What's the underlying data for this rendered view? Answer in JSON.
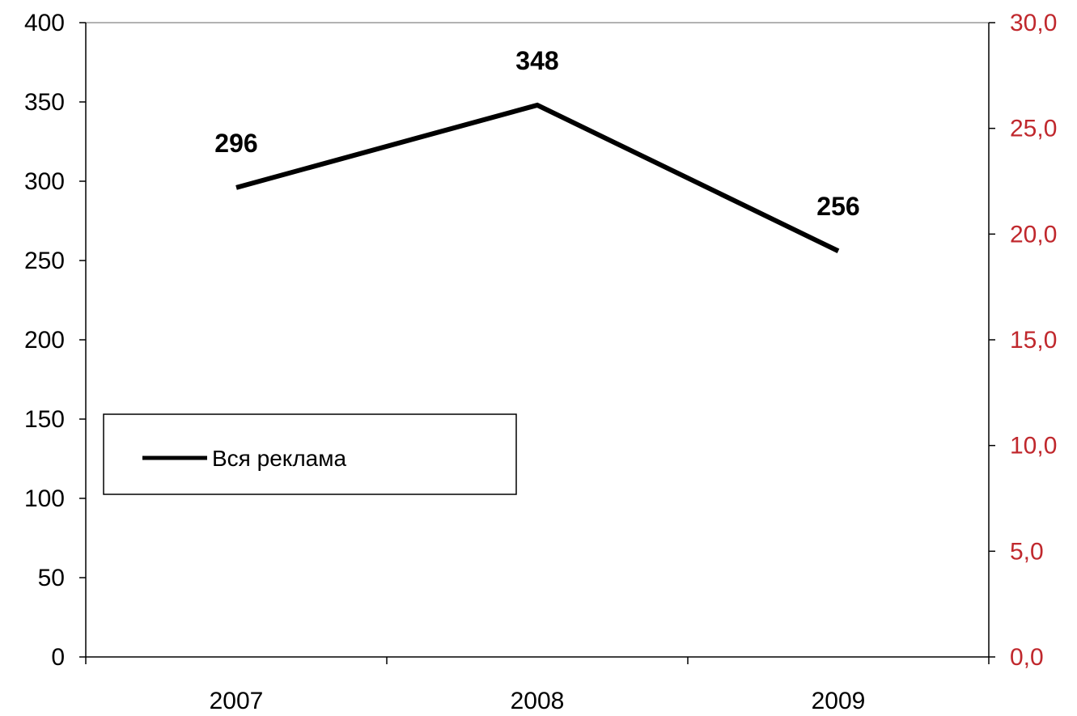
{
  "chart_data": {
    "type": "line",
    "categories": [
      "2007",
      "2008",
      "2009"
    ],
    "series": [
      {
        "name": "Вся реклама",
        "values": [
          296,
          348,
          256
        ],
        "color": "#000000"
      }
    ],
    "data_labels": [
      "296",
      "348",
      "256"
    ],
    "y_left": {
      "range": [
        0,
        400
      ],
      "ticks": [
        0,
        50,
        100,
        150,
        200,
        250,
        300,
        350,
        400
      ],
      "tick_labels": [
        "0",
        "50",
        "100",
        "150",
        "200",
        "250",
        "300",
        "350",
        "400"
      ],
      "color": "#000000"
    },
    "y_right": {
      "range": [
        0,
        30
      ],
      "ticks": [
        0,
        5,
        10,
        15,
        20,
        25,
        30
      ],
      "tick_labels": [
        "0,0",
        "5,0",
        "10,0",
        "15,0",
        "20,0",
        "25,0",
        "30,0"
      ],
      "color": "#c0282d"
    },
    "title": "",
    "xlabel": "",
    "ylabel": "",
    "grid": false,
    "legend": {
      "placement": "middle-left",
      "entries": [
        "Вся реклама"
      ]
    }
  }
}
